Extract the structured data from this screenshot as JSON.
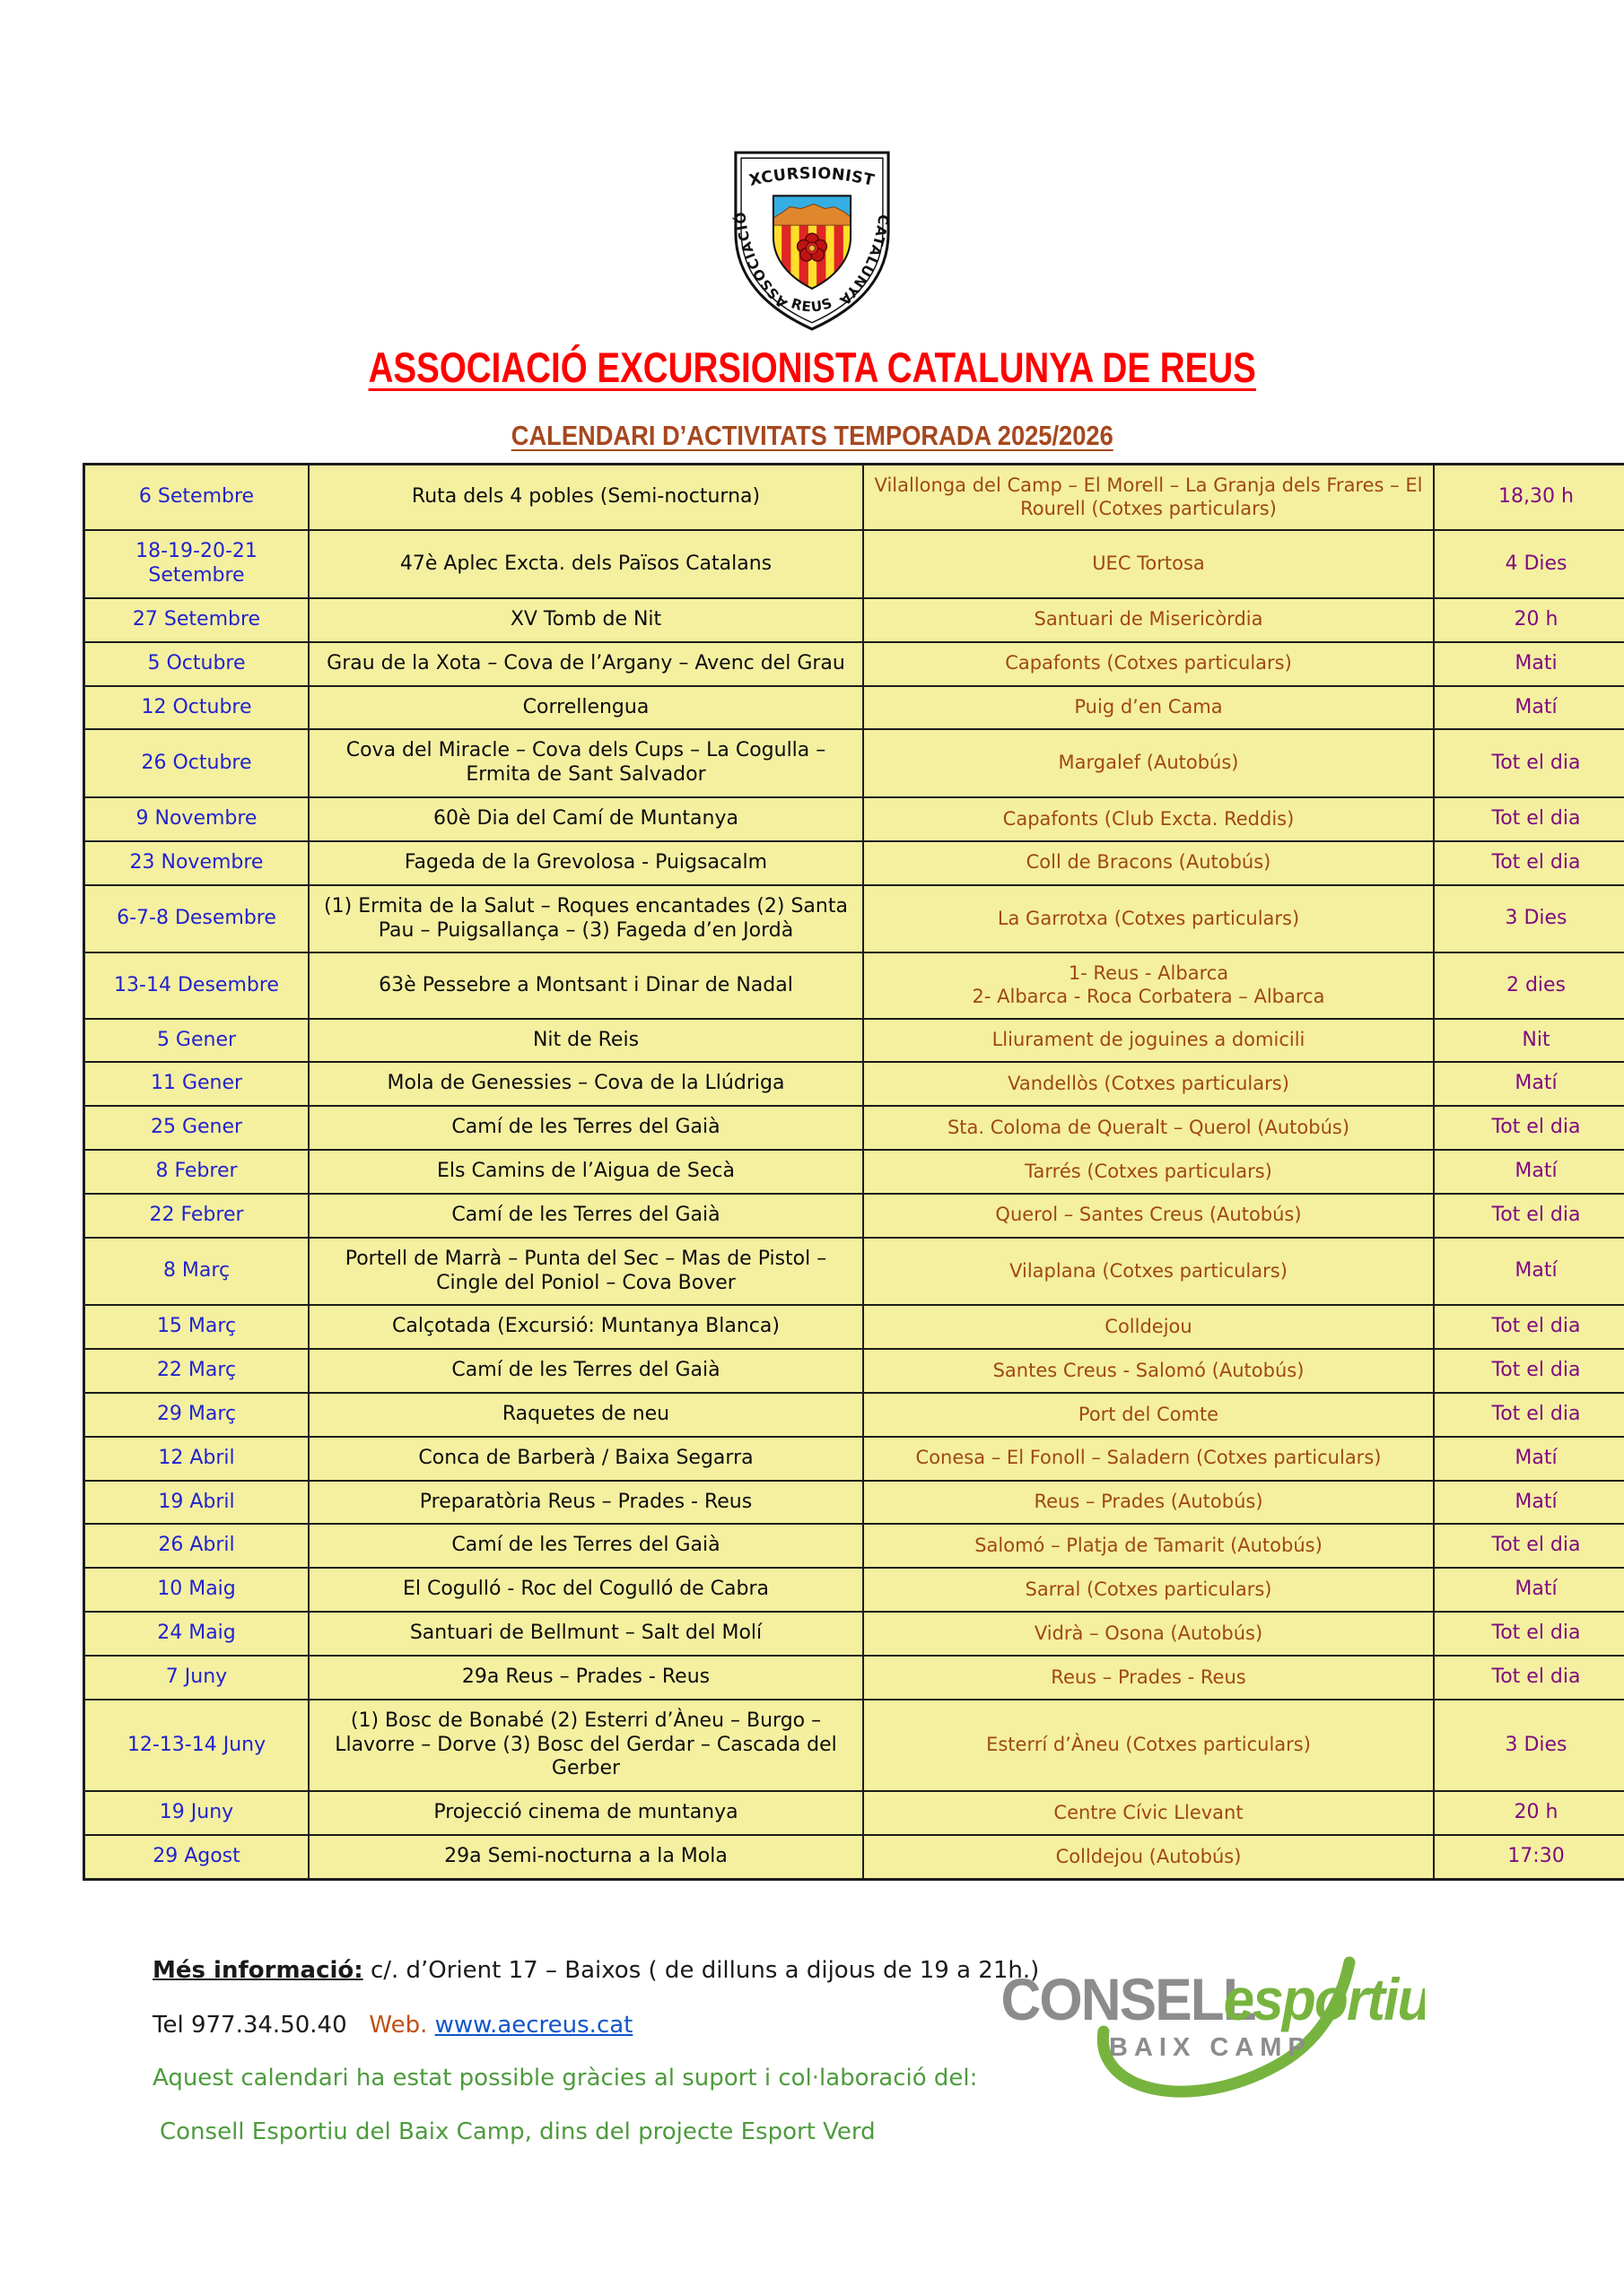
{
  "header": {
    "crest": {
      "top_text": "EXCURSIONISTA",
      "left_text": "ASSOCIACIÓ",
      "right_text": "CATALUNYA",
      "bottom_text": "REUS"
    },
    "title": "ASSOCIACIÓ EXCURSIONISTA CATALUNYA DE REUS",
    "subtitle": "CALENDARI D’ACTIVITATS TEMPORADA 2025/2026"
  },
  "table": {
    "columns": [
      "date",
      "activity",
      "location",
      "duration"
    ],
    "rows": [
      {
        "date": "6 Setembre",
        "activity": "Ruta dels 4 pobles (Semi-nocturna)",
        "location": "Vilallonga del Camp – El Morell – La Granja dels Frares – El Rourell (Cotxes particulars)",
        "duration": "18,30 h"
      },
      {
        "date": "18-19-20-21 Setembre",
        "activity": "47è Aplec Excta. dels Països Catalans",
        "location": "UEC Tortosa",
        "duration": "4 Dies"
      },
      {
        "date": "27 Setembre",
        "activity": "XV Tomb de Nit",
        "location": "Santuari de Misericòrdia",
        "duration": "20 h"
      },
      {
        "date": "5 Octubre",
        "activity": "Grau de la Xota – Cova de l’Argany – Avenc del Grau",
        "location": "Capafonts (Cotxes particulars)",
        "duration": "Mati"
      },
      {
        "date": "12 Octubre",
        "activity": "Correllengua",
        "location": "Puig d’en Cama",
        "duration": "Matí"
      },
      {
        "date": "26 Octubre",
        "activity": "Cova del Miracle – Cova dels Cups – La Cogulla – Ermita de Sant Salvador",
        "location": "Margalef (Autobús)",
        "duration": "Tot el dia"
      },
      {
        "date": "9 Novembre",
        "activity": "60è Dia del Camí de Muntanya",
        "location": "Capafonts (Club Excta. Reddis)",
        "duration": "Tot el dia"
      },
      {
        "date": "23 Novembre",
        "activity": "Fageda de la Grevolosa - Puigsacalm",
        "location": "Coll de Bracons (Autobús)",
        "duration": "Tot el dia"
      },
      {
        "date": "6-7-8 Desembre",
        "activity": "(1)   Ermita de la Salut – Roques encantades (2) Santa Pau – Puigsallança – (3) Fageda d’en Jordà",
        "location": "La Garrotxa (Cotxes particulars)",
        "duration": "3 Dies"
      },
      {
        "date": "13-14 Desembre",
        "activity": "63è Pessebre a Montsant i Dinar de Nadal",
        "location": "1-    Reus - Albarca\n2-    Albarca - Roca Corbatera – Albarca",
        "duration": "2 dies"
      },
      {
        "date": "5 Gener",
        "activity": "Nit de Reis",
        "location": "Lliurament de joguines a domicili",
        "duration": "Nit"
      },
      {
        "date": "11 Gener",
        "activity": "Mola de Genessies – Cova de la Llúdriga",
        "location": "Vandellòs (Cotxes particulars)",
        "duration": "Matí"
      },
      {
        "date": "25 Gener",
        "activity": "Camí de les Terres del Gaià",
        "location": "Sta. Coloma de Queralt – Querol (Autobús)",
        "duration": "Tot el dia"
      },
      {
        "date": "8 Febrer",
        "activity": "Els Camins de l’Aigua de Secà",
        "location": "Tarrés (Cotxes particulars)",
        "duration": "Matí"
      },
      {
        "date": "22 Febrer",
        "activity": "Camí de les Terres del Gaià",
        "location": "Querol – Santes Creus (Autobús)",
        "duration": "Tot el dia"
      },
      {
        "date": "8 Març",
        "activity": "Portell de Marrà – Punta del Sec – Mas de Pistol – Cingle del Poniol – Cova Bover",
        "location": "Vilaplana (Cotxes particulars)",
        "duration": "Matí"
      },
      {
        "date": "15 Març",
        "activity": "Calçotada (Excursió: Muntanya Blanca)",
        "location": "Colldejou",
        "duration": "Tot el dia"
      },
      {
        "date": "22 Març",
        "activity": "Camí de les Terres del Gaià",
        "location": "Santes Creus - Salomó (Autobús)",
        "duration": "Tot el dia"
      },
      {
        "date": "29 Març",
        "activity": "Raquetes de neu",
        "location": "Port del Comte",
        "duration": "Tot el dia"
      },
      {
        "date": "12 Abril",
        "activity": "Conca de Barberà / Baixa Segarra",
        "location": "Conesa – El Fonoll – Saladern (Cotxes particulars)",
        "duration": "Matí"
      },
      {
        "date": "19 Abril",
        "activity": "Preparatòria Reus – Prades - Reus",
        "location": "Reus – Prades (Autobús)",
        "duration": "Matí"
      },
      {
        "date": "26 Abril",
        "activity": "Camí de les Terres del Gaià",
        "location": "Salomó – Platja de Tamarit (Autobús)",
        "duration": "Tot el dia"
      },
      {
        "date": "10 Maig",
        "activity": "El Cogulló - Roc del Cogulló de Cabra",
        "location": "Sarral (Cotxes particulars)",
        "duration": "Matí"
      },
      {
        "date": "24 Maig",
        "activity": "Santuari de Bellmunt – Salt del Molí",
        "location": "Vidrà – Osona (Autobús)",
        "duration": "Tot el dia"
      },
      {
        "date": "7 Juny",
        "activity": "29a Reus – Prades - Reus",
        "location": "Reus – Prades - Reus",
        "duration": "Tot el dia"
      },
      {
        "date": "12-13-14 Juny",
        "activity": "(1)   Bosc de Bonabé (2) Esterri d’Àneu – Burgo – Llavorre – Dorve (3) Bosc del Gerdar – Cascada del Gerber",
        "location": "Esterrí d’Àneu (Cotxes particulars)",
        "duration": "3 Dies"
      },
      {
        "date": "19 Juny",
        "activity": "Projecció cinema de muntanya",
        "location": "Centre Cívic Llevant",
        "duration": "20 h"
      },
      {
        "date": "29 Agost",
        "activity": "29a Semi-nocturna a la Mola",
        "location": "Colldejou (Autobús)",
        "duration": "17:30"
      }
    ]
  },
  "footer": {
    "info_label": "Més informació:",
    "info_text": " c/. d’Orient 17 – Baixos ( de dilluns a dijous de 19 a 21h.)",
    "tel": "Tel 977.34.50.40",
    "web_label": "Web.",
    "web_url": "www.aecreus.cat",
    "support_line": "Aquest calendari ha estat possible gràcies al suport i col·laboració del:",
    "support_org": "Consell Esportiu del Baix Camp, dins del projecte Esport Verd",
    "sponsor_logo": {
      "word1": "CONSELL",
      "word2": "esportiu",
      "word3": "BAIX CAMP"
    }
  },
  "colors": {
    "table_background": "#f4f0a0",
    "date_blue": "#2323ce",
    "location_brown": "#a04812",
    "duration_purple": "#800b80",
    "title_red": "#fe0000",
    "subtitle_brick": "#a6481f",
    "footer_green": "#4e9b3d",
    "link_blue": "#1155cc",
    "sponsor_green": "#77b43f",
    "sponsor_gray": "#8c8c8c"
  }
}
